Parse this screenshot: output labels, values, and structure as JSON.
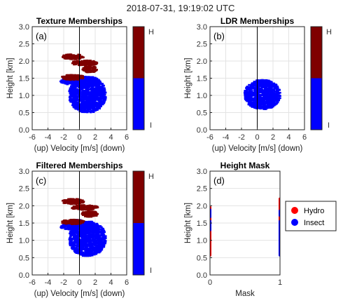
{
  "figure": {
    "title": "2018-07-31, 19:19:02 UTC"
  },
  "chart_data": [
    {
      "type": "scatter",
      "panel": "(a)",
      "title": "Texture Memberships",
      "xlabel": "(up) Velocity [m/s] (down)",
      "ylabel": "Height [km]",
      "xlim": [
        -6,
        6
      ],
      "ylim": [
        0,
        3
      ],
      "xticks": [
        "-6",
        "-4",
        "-2",
        "0",
        "2",
        "4",
        "6"
      ],
      "yticks": [
        "0.0",
        "0.5",
        "1.0",
        "1.5",
        "2.0",
        "2.5",
        "3.0"
      ],
      "grid": true,
      "vertical_line_x": 0,
      "colorbar": {
        "labels": [
          "H",
          "I"
        ],
        "colors": [
          "#7f0000",
          "#0000ff"
        ],
        "split": 0.5
      },
      "regions": [
        {
          "class": "I",
          "color": "#0000ff",
          "x": [
            -1.3,
            3.3
          ],
          "y": [
            0.5,
            1.55
          ]
        },
        {
          "class": "I",
          "color": "#0000ff",
          "x": [
            -2.4,
            2.4
          ],
          "y": [
            1.3,
            1.55
          ]
        },
        {
          "class": "H",
          "color": "#7f0000",
          "x": [
            -2.3,
            0.6
          ],
          "y": [
            1.45,
            1.6
          ]
        },
        {
          "class": "H",
          "color": "#7f0000",
          "x": [
            0.4,
            2.2
          ],
          "y": [
            1.67,
            1.85
          ]
        },
        {
          "class": "H",
          "color": "#7f0000",
          "x": [
            -1.0,
            2.3
          ],
          "y": [
            1.87,
            2.02
          ]
        },
        {
          "class": "H",
          "color": "#7f0000",
          "x": [
            -2.2,
            0.5
          ],
          "y": [
            2.05,
            2.2
          ]
        }
      ]
    },
    {
      "type": "scatter",
      "panel": "(b)",
      "title": "LDR Memberships",
      "xlabel": "(up) Velocity [m/s] (down)",
      "ylabel": "Height [km]",
      "xlim": [
        -6,
        6
      ],
      "ylim": [
        0,
        3
      ],
      "xticks": [
        "-6",
        "-4",
        "-2",
        "0",
        "2",
        "4",
        "6"
      ],
      "yticks": [
        "0.0",
        "0.5",
        "1.0",
        "1.5",
        "2.0",
        "2.5",
        "3.0"
      ],
      "grid": true,
      "vertical_line_x": 0,
      "colorbar": {
        "labels": [
          "H",
          "I"
        ],
        "colors": [
          "#7f0000",
          "#0000ff"
        ],
        "split": 0.5
      },
      "regions": [
        {
          "class": "I",
          "color": "#0000ff",
          "x": [
            -1.6,
            2.9
          ],
          "y": [
            0.6,
            1.45
          ]
        }
      ]
    },
    {
      "type": "scatter",
      "panel": "(c)",
      "title": "Filtered Memberships",
      "xlabel": "(up) Velocity [m/s] (down)",
      "ylabel": "Height [km]",
      "xlim": [
        -6,
        6
      ],
      "ylim": [
        0,
        3
      ],
      "xticks": [
        "-6",
        "-4",
        "-2",
        "0",
        "2",
        "4",
        "6"
      ],
      "yticks": [
        "0.0",
        "0.5",
        "1.0",
        "1.5",
        "2.0",
        "2.5",
        "3.0"
      ],
      "grid": true,
      "vertical_line_x": 0,
      "colorbar": {
        "labels": [
          "H",
          "I"
        ],
        "colors": [
          "#7f0000",
          "#0000ff"
        ],
        "split": 0.5
      },
      "regions": [
        {
          "class": "I",
          "color": "#0000ff",
          "x": [
            -1.3,
            3.3
          ],
          "y": [
            0.55,
            1.55
          ]
        },
        {
          "class": "I",
          "color": "#0000ff",
          "x": [
            -2.4,
            2.4
          ],
          "y": [
            1.3,
            1.5
          ]
        },
        {
          "class": "I",
          "color": "#0000ff",
          "x": [
            -1.2,
            0.4
          ],
          "y": [
            1.5,
            1.6
          ]
        },
        {
          "class": "H",
          "color": "#7f0000",
          "x": [
            -2.3,
            0.6
          ],
          "y": [
            1.47,
            1.6
          ]
        },
        {
          "class": "H",
          "color": "#7f0000",
          "x": [
            0.3,
            2.3
          ],
          "y": [
            1.68,
            1.85
          ]
        },
        {
          "class": "H",
          "color": "#7f0000",
          "x": [
            -1.0,
            2.3
          ],
          "y": [
            1.88,
            2.02
          ]
        },
        {
          "class": "H",
          "color": "#7f0000",
          "x": [
            -2.2,
            0.6
          ],
          "y": [
            2.05,
            2.2
          ]
        }
      ]
    },
    {
      "type": "scatter",
      "panel": "(d)",
      "title": "Height Mask",
      "xlabel": "Mask",
      "ylabel": "Height [km]",
      "xlim": [
        0,
        1
      ],
      "ylim": [
        0,
        3
      ],
      "xticks": [
        "0",
        "1"
      ],
      "yticks": [
        "0.0",
        "0.5",
        "1.0",
        "1.5",
        "2.0",
        "2.5",
        "3.0"
      ],
      "grid": true,
      "legend": {
        "placement": "outside-right",
        "items": [
          {
            "label": "Hydro",
            "color": "#ff0000"
          },
          {
            "label": "Insect",
            "color": "#0000ff"
          }
        ]
      },
      "series": [
        {
          "name": "Hydro",
          "color": "#ff0000",
          "segments": [
            {
              "x": 0,
              "y": [
                0.57,
                1.3
              ]
            },
            {
              "x": 0,
              "y": [
                1.55,
                1.68
              ]
            },
            {
              "x": 0,
              "y": [
                1.88,
                1.95
              ]
            },
            {
              "x": 1,
              "y": [
                1.55,
                1.72
              ]
            },
            {
              "x": 1,
              "y": [
                1.85,
                2.2
              ]
            }
          ]
        },
        {
          "name": "Insect",
          "color": "#0000ff",
          "segments": [
            {
              "x": 0,
              "y": [
                1.3,
                1.55
              ]
            },
            {
              "x": 0,
              "y": [
                1.68,
                1.88
              ]
            },
            {
              "x": 1,
              "y": [
                0.57,
                1.55
              ]
            },
            {
              "x": 1,
              "y": [
                1.72,
                1.85
              ]
            }
          ]
        }
      ]
    }
  ]
}
